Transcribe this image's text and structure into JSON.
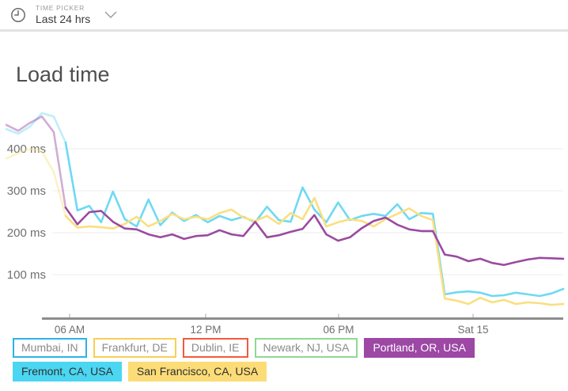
{
  "time_picker": {
    "label": "TIME PICKER",
    "value": "Last 24 hrs",
    "clock_icon": "clock",
    "chevron_icon": "chevron-down"
  },
  "chart_data": {
    "type": "line",
    "title": "Load time",
    "ylabel": "ms",
    "ylim": [
      0,
      500
    ],
    "grid": true,
    "legend_position": "bottom",
    "grid_color": "#ededed",
    "axis_color": "#8d8d8d",
    "tick_label_color": "#6f6f6f",
    "y_ticks": [
      {
        "value": 400,
        "label": "400 ms"
      },
      {
        "value": 300,
        "label": "300 ms"
      },
      {
        "value": 200,
        "label": "200 ms"
      },
      {
        "value": 100,
        "label": "100 ms"
      }
    ],
    "x_ticks": [
      {
        "label": "06 AM",
        "pos": 0.1136
      },
      {
        "label": "12 PM",
        "pos": 0.358
      },
      {
        "label": "06 PM",
        "pos": 0.5966
      },
      {
        "label": "Sat 15",
        "pos": 0.8381
      }
    ],
    "series": [
      {
        "name": "Fremont, CA, USA",
        "color": "#6fd9f2",
        "values": [
          447,
          436,
          453,
          485,
          477,
          415,
          253,
          264,
          225,
          298,
          232,
          215,
          279,
          218,
          248,
          228,
          242,
          225,
          240,
          230,
          238,
          225,
          262,
          230,
          226,
          308,
          255,
          225,
          272,
          230,
          240,
          245,
          240,
          268,
          232,
          247,
          245,
          53,
          58,
          60,
          57,
          49,
          51,
          57,
          53,
          49,
          55,
          66
        ]
      },
      {
        "name": "San Francisco, CA, USA",
        "color": "#fadf80",
        "values": [
          377,
          390,
          400,
          394,
          345,
          240,
          212,
          215,
          213,
          210,
          221,
          238,
          215,
          228,
          245,
          232,
          238,
          232,
          247,
          255,
          236,
          228,
          240,
          221,
          247,
          232,
          283,
          215,
          225,
          232,
          228,
          215,
          232,
          245,
          258,
          240,
          230,
          43,
          38,
          30,
          45,
          34,
          40,
          30,
          34,
          32,
          28,
          30
        ]
      },
      {
        "name": "Portland, OR, USA",
        "color": "#9b4aa0",
        "values": [
          457,
          443,
          462,
          477,
          440,
          260,
          220,
          249,
          252,
          226,
          210,
          208,
          196,
          189,
          196,
          185,
          192,
          194,
          206,
          196,
          192,
          226,
          189,
          194,
          202,
          209,
          242,
          196,
          181,
          189,
          211,
          228,
          236,
          219,
          208,
          204,
          204,
          148,
          143,
          132,
          138,
          128,
          123,
          130,
          136,
          140,
          139,
          138
        ]
      }
    ]
  },
  "legend": {
    "rows": [
      [
        {
          "label": "Mumbai, IN",
          "state": "outline",
          "color": "#2cb3e8"
        },
        {
          "label": "Frankfurt, DE",
          "state": "outline",
          "color": "#f7cf55"
        },
        {
          "label": "Dublin, IE",
          "state": "outline",
          "color": "#f25a3e"
        },
        {
          "label": "Newark, NJ, USA",
          "state": "outline",
          "color": "#90d893"
        },
        {
          "label": "Portland, OR, USA",
          "state": "filled",
          "color": "#9c48a4",
          "text_color": "#ffffff"
        }
      ],
      [
        {
          "label": "Fremont, CA, USA",
          "state": "filled",
          "color": "#4bd6f2",
          "text_color": "#2f2f2f"
        },
        {
          "label": "San Francisco, CA, USA",
          "state": "filled",
          "color": "#fbdc77",
          "text_color": "#2f2f2f"
        }
      ]
    ]
  }
}
